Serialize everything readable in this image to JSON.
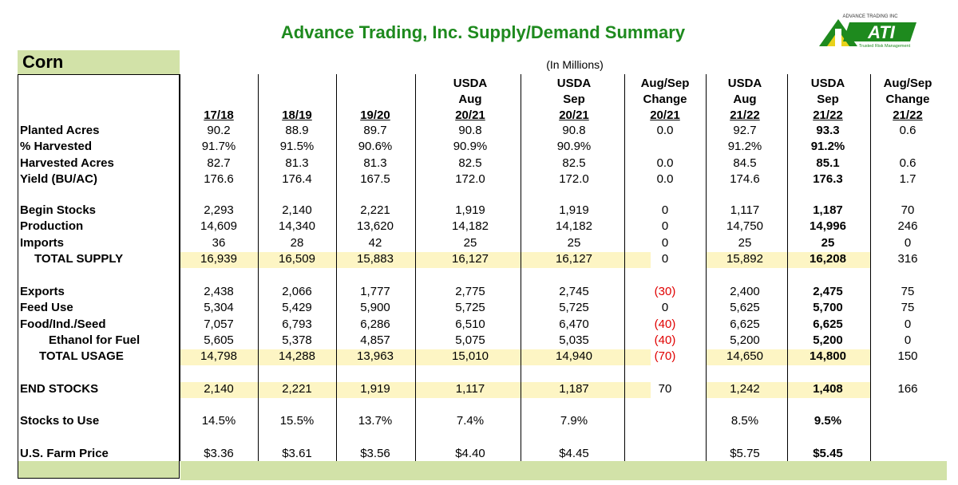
{
  "title": "Advance Trading, Inc. Supply/Demand Summary",
  "units": "(In Millions)",
  "commodity": "Corn",
  "logo": {
    "top_text": "ADVANCE TRADING INC",
    "main": "ATI",
    "tagline": "Trusted Risk Management"
  },
  "columns": [
    {
      "line1": "",
      "line2": "",
      "line3": "17/18"
    },
    {
      "line1": "",
      "line2": "",
      "line3": "18/19"
    },
    {
      "line1": "",
      "line2": "",
      "line3": "19/20"
    },
    {
      "line1": "USDA",
      "line2": "Aug",
      "line3": "20/21"
    },
    {
      "line1": "USDA",
      "line2": "Sep",
      "line3": "20/21"
    },
    {
      "line1": "Aug/Sep",
      "line2": "Change",
      "line3": "20/21"
    },
    {
      "line1": "USDA",
      "line2": "Aug",
      "line3": "21/22"
    },
    {
      "line1": "USDA",
      "line2": "Sep",
      "line3": "21/22"
    },
    {
      "line1": "Aug/Sep",
      "line2": "Change",
      "line3": "21/22"
    }
  ],
  "rows": [
    {
      "label": "Planted Acres",
      "values": [
        "90.2",
        "88.9",
        "89.7",
        "90.8",
        "90.8",
        "0.0",
        "92.7",
        "93.3",
        "0.6"
      ]
    },
    {
      "label": "% Harvested",
      "values": [
        "91.7%",
        "91.5%",
        "90.6%",
        "90.9%",
        "90.9%",
        "",
        "91.2%",
        "91.2%",
        ""
      ]
    },
    {
      "label": "Harvested Acres",
      "values": [
        "82.7",
        "81.3",
        "81.3",
        "82.5",
        "82.5",
        "0.0",
        "84.5",
        "85.1",
        "0.6"
      ]
    },
    {
      "label": "Yield (BU/AC)",
      "values": [
        "176.6",
        "176.4",
        "167.5",
        "172.0",
        "172.0",
        "0.0",
        "174.6",
        "176.3",
        "1.7"
      ]
    },
    {
      "label": "Begin Stocks",
      "values": [
        "2,293",
        "2,140",
        "2,221",
        "1,919",
        "1,919",
        "0",
        "1,117",
        "1,187",
        "70"
      ]
    },
    {
      "label": "Production",
      "values": [
        "14,609",
        "14,340",
        "13,620",
        "14,182",
        "14,182",
        "0",
        "14,750",
        "14,996",
        "246"
      ]
    },
    {
      "label": "Imports",
      "values": [
        "36",
        "28",
        "42",
        "25",
        "25",
        "0",
        "25",
        "25",
        "0"
      ]
    },
    {
      "label": "TOTAL SUPPLY",
      "values": [
        "16,939",
        "16,509",
        "15,883",
        "16,127",
        "16,127",
        "0",
        "15,892",
        "16,208",
        "316"
      ]
    },
    {
      "label": "Exports",
      "values": [
        "2,438",
        "2,066",
        "1,777",
        "2,775",
        "2,745",
        "(30)",
        "2,400",
        "2,475",
        "75"
      ]
    },
    {
      "label": "Feed Use",
      "values": [
        "5,304",
        "5,429",
        "5,900",
        "5,725",
        "5,725",
        "0",
        "5,625",
        "5,700",
        "75"
      ]
    },
    {
      "label": "Food/Ind./Seed",
      "values": [
        "7,057",
        "6,793",
        "6,286",
        "6,510",
        "6,470",
        "(40)",
        "6,625",
        "6,625",
        "0"
      ]
    },
    {
      "label": "Ethanol for Fuel",
      "values": [
        "5,605",
        "5,378",
        "4,857",
        "5,075",
        "5,035",
        "(40)",
        "5,200",
        "5,200",
        "0"
      ]
    },
    {
      "label": "TOTAL USAGE",
      "values": [
        "14,798",
        "14,288",
        "13,963",
        "15,010",
        "14,940",
        "(70)",
        "14,650",
        "14,800",
        "150"
      ]
    },
    {
      "label": "END STOCKS",
      "values": [
        "2,140",
        "2,221",
        "1,919",
        "1,117",
        "1,187",
        "70",
        "1,242",
        "1,408",
        "166"
      ]
    },
    {
      "label": "Stocks to Use",
      "values": [
        "14.5%",
        "15.5%",
        "13.7%",
        "7.4%",
        "7.9%",
        "",
        "8.5%",
        "9.5%",
        ""
      ]
    },
    {
      "label": "U.S. Farm Price",
      "values": [
        "$3.36",
        "$3.61",
        "$3.56",
        "$4.40",
        "$4.45",
        "",
        "$5.75",
        "$5.45",
        ""
      ]
    }
  ],
  "colors": {
    "title_green": "#1e8a1e",
    "band_green": "#d2e2a8",
    "highlight_yellow": "#fdf5c4",
    "negative_red": "#e00000"
  }
}
